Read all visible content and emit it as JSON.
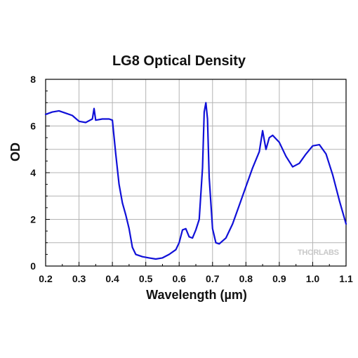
{
  "chart_data": {
    "type": "line",
    "title": "LG8 Optical Density",
    "xlabel": "Wavelength (µm)",
    "ylabel": "OD",
    "xlim": [
      0.2,
      1.1
    ],
    "ylim": [
      0,
      8
    ],
    "xticks": [
      0.2,
      0.3,
      0.4,
      0.5,
      0.6,
      0.7,
      0.8,
      0.9,
      1.0,
      1.1
    ],
    "xtick_labels": [
      "0.2",
      "0.3",
      "0.4",
      "0.5",
      "0.6",
      "0.7",
      "0.8",
      "0.9",
      "1.0",
      "1.1"
    ],
    "yticks": [
      0,
      2,
      4,
      6,
      8
    ],
    "ytick_labels": [
      "0",
      "2",
      "4",
      "6",
      "8"
    ],
    "grid": true,
    "watermark": "THORLABS",
    "line_color": "#1010d8",
    "series": [
      {
        "values": [
          [
            0.2,
            6.5
          ],
          [
            0.22,
            6.6
          ],
          [
            0.24,
            6.65
          ],
          [
            0.26,
            6.55
          ],
          [
            0.28,
            6.45
          ],
          [
            0.3,
            6.2
          ],
          [
            0.32,
            6.15
          ],
          [
            0.34,
            6.3
          ],
          [
            0.345,
            6.75
          ],
          [
            0.35,
            6.25
          ],
          [
            0.37,
            6.3
          ],
          [
            0.39,
            6.3
          ],
          [
            0.4,
            6.25
          ],
          [
            0.41,
            4.8
          ],
          [
            0.42,
            3.5
          ],
          [
            0.43,
            2.7
          ],
          [
            0.44,
            2.2
          ],
          [
            0.45,
            1.6
          ],
          [
            0.46,
            0.8
          ],
          [
            0.47,
            0.5
          ],
          [
            0.49,
            0.4
          ],
          [
            0.51,
            0.35
          ],
          [
            0.53,
            0.3
          ],
          [
            0.55,
            0.35
          ],
          [
            0.57,
            0.5
          ],
          [
            0.59,
            0.7
          ],
          [
            0.6,
            1.0
          ],
          [
            0.61,
            1.55
          ],
          [
            0.62,
            1.6
          ],
          [
            0.63,
            1.25
          ],
          [
            0.64,
            1.2
          ],
          [
            0.65,
            1.55
          ],
          [
            0.66,
            2.0
          ],
          [
            0.67,
            4.2
          ],
          [
            0.675,
            6.6
          ],
          [
            0.68,
            7.0
          ],
          [
            0.685,
            6.3
          ],
          [
            0.69,
            3.8
          ],
          [
            0.7,
            1.6
          ],
          [
            0.71,
            1.0
          ],
          [
            0.72,
            0.95
          ],
          [
            0.74,
            1.2
          ],
          [
            0.76,
            1.8
          ],
          [
            0.78,
            2.6
          ],
          [
            0.8,
            3.4
          ],
          [
            0.82,
            4.2
          ],
          [
            0.84,
            4.9
          ],
          [
            0.85,
            5.8
          ],
          [
            0.86,
            5.0
          ],
          [
            0.87,
            5.5
          ],
          [
            0.88,
            5.6
          ],
          [
            0.9,
            5.3
          ],
          [
            0.92,
            4.7
          ],
          [
            0.94,
            4.25
          ],
          [
            0.96,
            4.4
          ],
          [
            0.98,
            4.8
          ],
          [
            1.0,
            5.15
          ],
          [
            1.02,
            5.2
          ],
          [
            1.04,
            4.8
          ],
          [
            1.06,
            3.9
          ],
          [
            1.08,
            2.8
          ],
          [
            1.1,
            1.8
          ]
        ]
      }
    ]
  }
}
